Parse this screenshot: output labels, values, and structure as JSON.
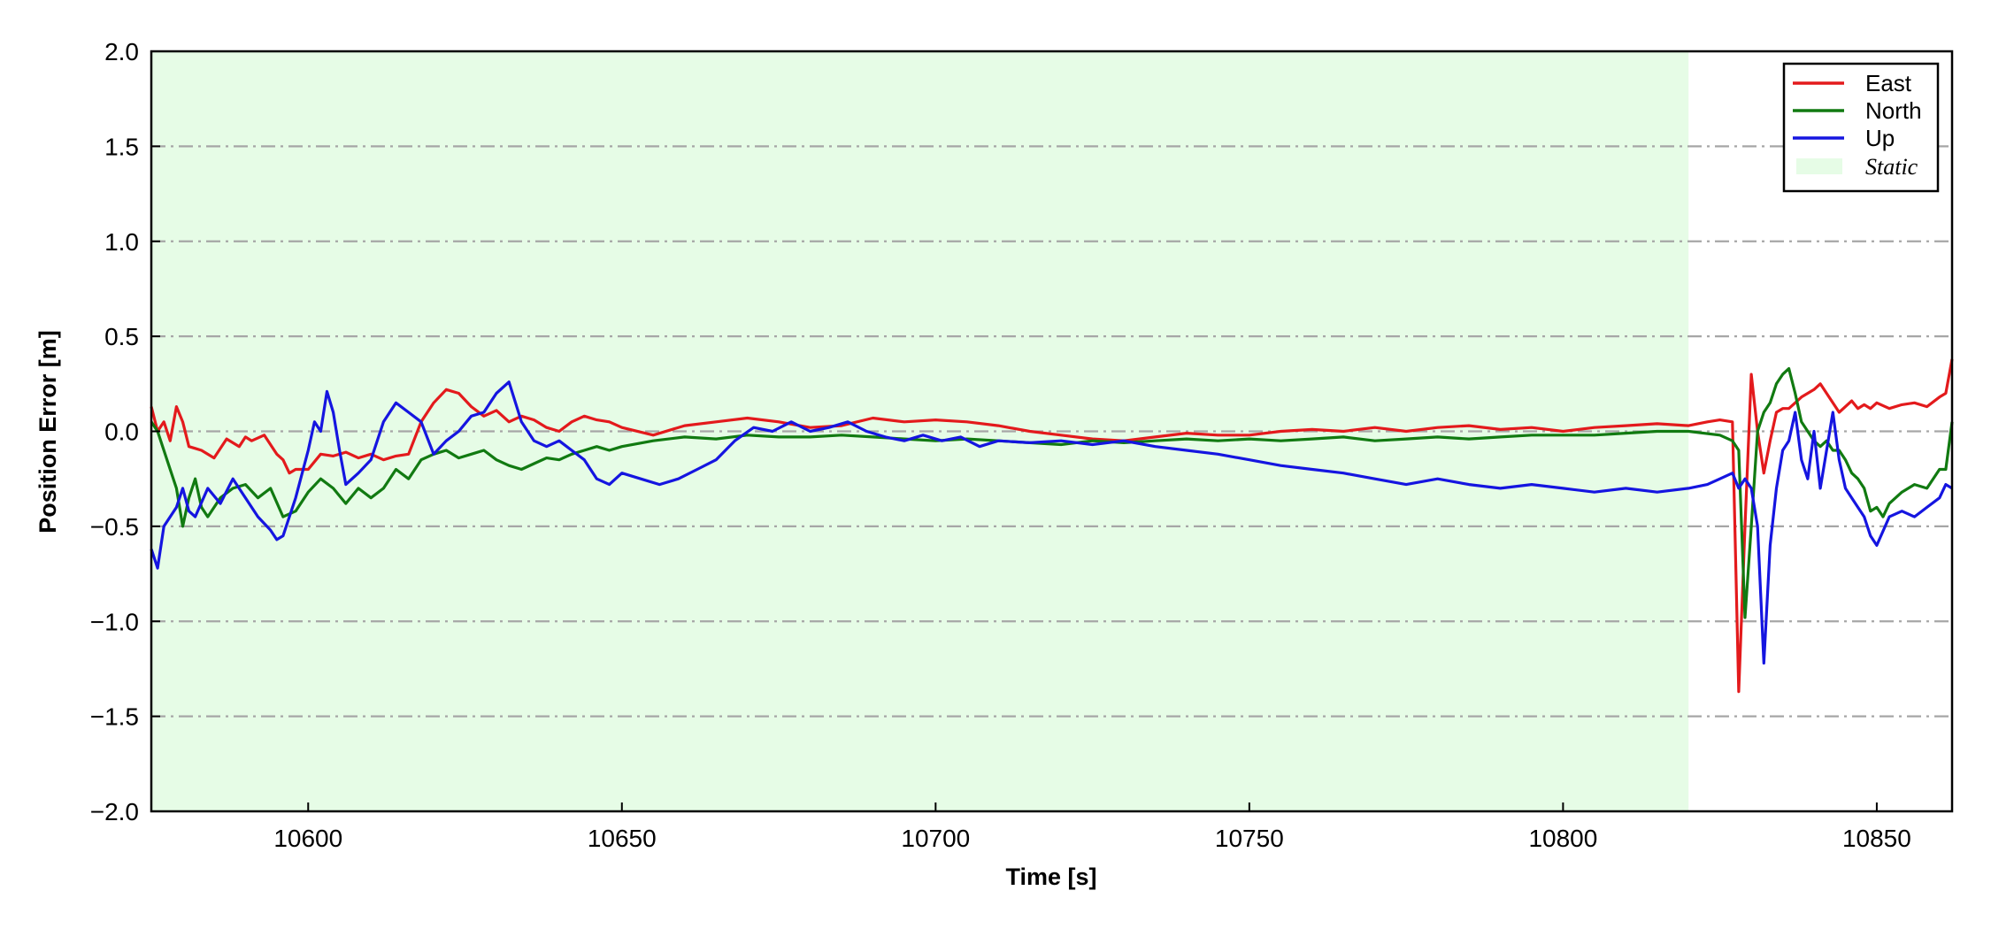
{
  "chart_data": {
    "type": "line",
    "title": "",
    "xlabel": "Time [s]",
    "ylabel": "Position Error [m]",
    "xlim": [
      10575,
      10862
    ],
    "ylim": [
      -2.0,
      2.0
    ],
    "xticks": [
      10600,
      10650,
      10700,
      10750,
      10800,
      10850
    ],
    "xtick_labels": [
      "10600",
      "10650",
      "10700",
      "10750",
      "10800",
      "10850"
    ],
    "yticks": [
      2.0,
      1.5,
      1.0,
      0.5,
      0.0,
      -0.5,
      -1.0,
      -1.5,
      -2.0
    ],
    "ytick_labels": [
      "2.0",
      "1.5",
      "1.0",
      "0.5",
      "0.0",
      "−0.5",
      "−1.0",
      "−1.5",
      "−2.0"
    ],
    "grid": "horizontal dash-dot",
    "legend_position": "top-right",
    "static_region": {
      "label": "Static",
      "x_start": 10575,
      "x_end": 10820,
      "color": "#e6fce6"
    },
    "series": [
      {
        "name": "East",
        "color": "#e31a1c",
        "x": [
          10575,
          10576,
          10577,
          10578,
          10579,
          10580,
          10581,
          10582,
          10583,
          10585,
          10587,
          10589,
          10590,
          10591,
          10593,
          10595,
          10596,
          10597,
          10598,
          10600,
          10602,
          10604,
          10606,
          10608,
          10610,
          10612,
          10614,
          10616,
          10618,
          10620,
          10622,
          10624,
          10626,
          10628,
          10630,
          10632,
          10634,
          10636,
          10638,
          10640,
          10642,
          10644,
          10646,
          10648,
          10650,
          10655,
          10660,
          10665,
          10670,
          10675,
          10680,
          10685,
          10690,
          10695,
          10700,
          10705,
          10710,
          10715,
          10720,
          10725,
          10730,
          10735,
          10740,
          10745,
          10750,
          10755,
          10760,
          10765,
          10770,
          10775,
          10780,
          10785,
          10790,
          10795,
          10800,
          10805,
          10810,
          10815,
          10820,
          10823,
          10825,
          10827,
          10828,
          10829,
          10830,
          10831,
          10832,
          10833,
          10834,
          10835,
          10836,
          10837,
          10838,
          10839,
          10840,
          10841,
          10842,
          10843,
          10844,
          10845,
          10846,
          10847,
          10848,
          10849,
          10850,
          10852,
          10854,
          10856,
          10858,
          10860,
          10861,
          10862
        ],
        "values": [
          0.13,
          0.0,
          0.05,
          -0.05,
          0.13,
          0.05,
          -0.08,
          -0.09,
          -0.1,
          -0.14,
          -0.04,
          -0.08,
          -0.03,
          -0.05,
          -0.02,
          -0.12,
          -0.15,
          -0.22,
          -0.2,
          -0.2,
          -0.12,
          -0.13,
          -0.11,
          -0.14,
          -0.12,
          -0.15,
          -0.13,
          -0.12,
          0.05,
          0.15,
          0.22,
          0.2,
          0.13,
          0.08,
          0.11,
          0.05,
          0.08,
          0.06,
          0.02,
          0.0,
          0.05,
          0.08,
          0.06,
          0.05,
          0.02,
          -0.02,
          0.03,
          0.05,
          0.07,
          0.05,
          0.02,
          0.03,
          0.07,
          0.05,
          0.06,
          0.05,
          0.03,
          0.0,
          -0.02,
          -0.04,
          -0.05,
          -0.03,
          -0.01,
          -0.02,
          -0.02,
          0.0,
          0.01,
          0.0,
          0.02,
          0.0,
          0.02,
          0.03,
          0.01,
          0.02,
          0.0,
          0.02,
          0.03,
          0.04,
          0.03,
          0.05,
          0.06,
          0.05,
          -1.37,
          -0.5,
          0.3,
          0.0,
          -0.22,
          -0.05,
          0.1,
          0.12,
          0.12,
          0.15,
          0.18,
          0.2,
          0.22,
          0.25,
          0.2,
          0.15,
          0.1,
          0.13,
          0.16,
          0.12,
          0.14,
          0.12,
          0.15,
          0.12,
          0.14,
          0.15,
          0.13,
          0.18,
          0.2,
          0.38
        ]
      },
      {
        "name": "North",
        "color": "#117a11",
        "x": [
          10575,
          10576,
          10577,
          10578,
          10579,
          10580,
          10581,
          10582,
          10583,
          10584,
          10586,
          10588,
          10590,
          10592,
          10594,
          10596,
          10598,
          10600,
          10602,
          10604,
          10606,
          10608,
          10610,
          10612,
          10614,
          10616,
          10618,
          10620,
          10622,
          10624,
          10626,
          10628,
          10630,
          10632,
          10634,
          10636,
          10638,
          10640,
          10642,
          10644,
          10646,
          10648,
          10650,
          10655,
          10660,
          10665,
          10670,
          10675,
          10680,
          10685,
          10690,
          10695,
          10700,
          10705,
          10710,
          10715,
          10720,
          10725,
          10730,
          10735,
          10740,
          10745,
          10750,
          10755,
          10760,
          10765,
          10770,
          10775,
          10780,
          10785,
          10790,
          10795,
          10800,
          10805,
          10810,
          10815,
          10820,
          10825,
          10827,
          10828,
          10829,
          10830,
          10831,
          10832,
          10833,
          10834,
          10835,
          10836,
          10837,
          10838,
          10839,
          10840,
          10841,
          10842,
          10843,
          10844,
          10845,
          10846,
          10847,
          10848,
          10849,
          10850,
          10851,
          10852,
          10854,
          10856,
          10858,
          10860,
          10861,
          10862
        ],
        "values": [
          0.05,
          0.0,
          -0.1,
          -0.2,
          -0.3,
          -0.5,
          -0.35,
          -0.25,
          -0.4,
          -0.45,
          -0.35,
          -0.3,
          -0.28,
          -0.35,
          -0.3,
          -0.45,
          -0.42,
          -0.32,
          -0.25,
          -0.3,
          -0.38,
          -0.3,
          -0.35,
          -0.3,
          -0.2,
          -0.25,
          -0.15,
          -0.12,
          -0.1,
          -0.14,
          -0.12,
          -0.1,
          -0.15,
          -0.18,
          -0.2,
          -0.17,
          -0.14,
          -0.15,
          -0.12,
          -0.1,
          -0.08,
          -0.1,
          -0.08,
          -0.05,
          -0.03,
          -0.04,
          -0.02,
          -0.03,
          -0.03,
          -0.02,
          -0.03,
          -0.04,
          -0.05,
          -0.04,
          -0.05,
          -0.06,
          -0.07,
          -0.05,
          -0.06,
          -0.05,
          -0.04,
          -0.05,
          -0.04,
          -0.05,
          -0.04,
          -0.03,
          -0.05,
          -0.04,
          -0.03,
          -0.04,
          -0.03,
          -0.02,
          -0.02,
          -0.02,
          -0.01,
          0.0,
          0.0,
          -0.02,
          -0.05,
          -0.1,
          -0.98,
          -0.5,
          0.0,
          0.1,
          0.15,
          0.25,
          0.3,
          0.33,
          0.2,
          0.05,
          0.0,
          -0.05,
          -0.08,
          -0.05,
          -0.1,
          -0.1,
          -0.15,
          -0.22,
          -0.25,
          -0.3,
          -0.42,
          -0.4,
          -0.45,
          -0.38,
          -0.32,
          -0.28,
          -0.3,
          -0.2,
          -0.2,
          0.05
        ]
      },
      {
        "name": "Up",
        "color": "#1515e0",
        "x": [
          10575,
          10576,
          10577,
          10578,
          10579,
          10580,
          10581,
          10582,
          10584,
          10586,
          10588,
          10590,
          10592,
          10594,
          10595,
          10596,
          10598,
          10600,
          10601,
          10602,
          10603,
          10604,
          10605,
          10606,
          10608,
          10610,
          10612,
          10614,
          10616,
          10618,
          10620,
          10622,
          10624,
          10626,
          10628,
          10630,
          10632,
          10634,
          10636,
          10638,
          10640,
          10642,
          10644,
          10646,
          10648,
          10650,
          10653,
          10656,
          10659,
          10662,
          10665,
          10668,
          10671,
          10674,
          10677,
          10680,
          10683,
          10686,
          10689,
          10692,
          10695,
          10698,
          10701,
          10704,
          10707,
          10710,
          10715,
          10720,
          10725,
          10730,
          10735,
          10740,
          10745,
          10750,
          10755,
          10760,
          10765,
          10770,
          10775,
          10780,
          10785,
          10790,
          10795,
          10800,
          10805,
          10810,
          10815,
          10820,
          10823,
          10825,
          10827,
          10828,
          10829,
          10830,
          10831,
          10832,
          10833,
          10834,
          10835,
          10836,
          10837,
          10838,
          10839,
          10840,
          10841,
          10842,
          10843,
          10844,
          10845,
          10846,
          10847,
          10848,
          10849,
          10850,
          10852,
          10854,
          10856,
          10858,
          10860,
          10861,
          10862
        ],
        "values": [
          -0.62,
          -0.72,
          -0.5,
          -0.45,
          -0.4,
          -0.3,
          -0.42,
          -0.45,
          -0.3,
          -0.38,
          -0.25,
          -0.35,
          -0.45,
          -0.52,
          -0.57,
          -0.55,
          -0.35,
          -0.1,
          0.05,
          0.0,
          0.21,
          0.1,
          -0.1,
          -0.28,
          -0.22,
          -0.15,
          0.05,
          0.15,
          0.1,
          0.05,
          -0.12,
          -0.05,
          0.0,
          0.08,
          0.1,
          0.2,
          0.26,
          0.05,
          -0.05,
          -0.08,
          -0.05,
          -0.1,
          -0.15,
          -0.25,
          -0.28,
          -0.22,
          -0.25,
          -0.28,
          -0.25,
          -0.2,
          -0.15,
          -0.05,
          0.02,
          0.0,
          0.05,
          0.0,
          0.02,
          0.05,
          0.0,
          -0.03,
          -0.05,
          -0.02,
          -0.05,
          -0.03,
          -0.08,
          -0.05,
          -0.06,
          -0.05,
          -0.07,
          -0.05,
          -0.08,
          -0.1,
          -0.12,
          -0.15,
          -0.18,
          -0.2,
          -0.22,
          -0.25,
          -0.28,
          -0.25,
          -0.28,
          -0.3,
          -0.28,
          -0.3,
          -0.32,
          -0.3,
          -0.32,
          -0.3,
          -0.28,
          -0.25,
          -0.22,
          -0.3,
          -0.25,
          -0.3,
          -0.5,
          -1.22,
          -0.6,
          -0.3,
          -0.1,
          -0.05,
          0.1,
          -0.15,
          -0.25,
          0.0,
          -0.3,
          -0.1,
          0.1,
          -0.15,
          -0.3,
          -0.35,
          -0.4,
          -0.45,
          -0.55,
          -0.6,
          -0.45,
          -0.42,
          -0.45,
          -0.4,
          -0.35,
          -0.28,
          -0.3
        ]
      }
    ]
  }
}
